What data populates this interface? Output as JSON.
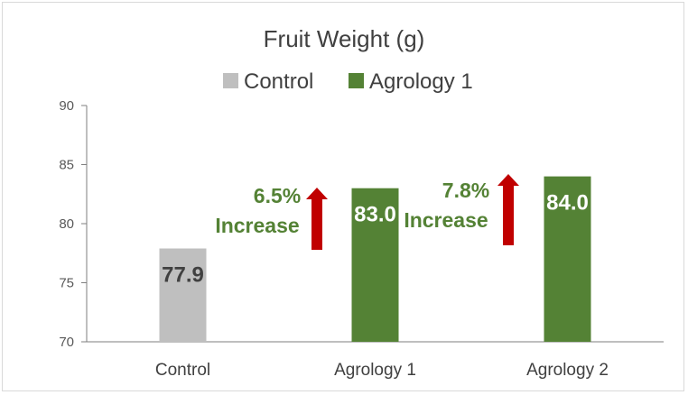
{
  "chart_data": {
    "type": "bar",
    "title": "Fruit Weight (g)",
    "categories": [
      "Control",
      "Agrology 1",
      "Agrology 2"
    ],
    "values": [
      77.9,
      83.0,
      84.0
    ],
    "value_labels": [
      "77.9",
      "83.0",
      "84.0"
    ],
    "bar_colors": [
      "#bfbfbf",
      "#548235",
      "#548235"
    ],
    "label_colors": [
      "#404040",
      "#ffffff",
      "#ffffff"
    ],
    "ylim": [
      70,
      90
    ],
    "yticks": [
      70,
      75,
      80,
      85,
      90
    ],
    "xlabel": "",
    "ylabel": "",
    "grid": false,
    "legend": {
      "placement": "top",
      "entries": [
        {
          "label": "Control",
          "color": "#bfbfbf"
        },
        {
          "label": "Agrology 1",
          "color": "#548235"
        }
      ]
    },
    "annotations": [
      {
        "target": "Agrology 1",
        "percent": "6.5%",
        "text": "Increase",
        "color": "#548235",
        "arrow_color": "#c00000"
      },
      {
        "target": "Agrology 2",
        "percent": "7.8%",
        "text": "Increase",
        "color": "#548235",
        "arrow_color": "#c00000"
      }
    ]
  }
}
